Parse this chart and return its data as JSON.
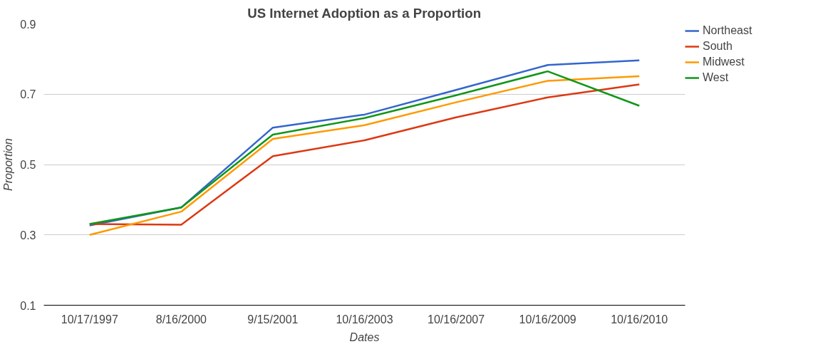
{
  "chart_data": {
    "type": "line",
    "title": "US Internet Adoption as a Proportion",
    "xlabel": "Dates",
    "ylabel": "Proportion",
    "categories": [
      "10/17/1997",
      "8/16/2000",
      "9/15/2001",
      "10/16/2003",
      "10/16/2007",
      "10/16/2009",
      "10/16/2010"
    ],
    "series": [
      {
        "name": "Northeast",
        "color": "#3366cc",
        "values": [
          0.327,
          0.378,
          0.605,
          0.642,
          0.712,
          0.783,
          0.796
        ]
      },
      {
        "name": "South",
        "color": "#dc3912",
        "values": [
          0.331,
          0.329,
          0.524,
          0.569,
          0.634,
          0.691,
          0.728
        ]
      },
      {
        "name": "Midwest",
        "color": "#ff9900",
        "values": [
          0.3,
          0.366,
          0.573,
          0.612,
          0.677,
          0.738,
          0.751
        ]
      },
      {
        "name": "West",
        "color": "#109618",
        "values": [
          0.331,
          0.378,
          0.585,
          0.632,
          0.697,
          0.765,
          0.667
        ]
      }
    ],
    "ylim": [
      0.1,
      0.9
    ],
    "yticks": [
      0.1,
      0.3,
      0.5,
      0.7,
      0.9
    ],
    "grid": "y",
    "legend": "right",
    "marker": "none",
    "line_style": "solid"
  }
}
